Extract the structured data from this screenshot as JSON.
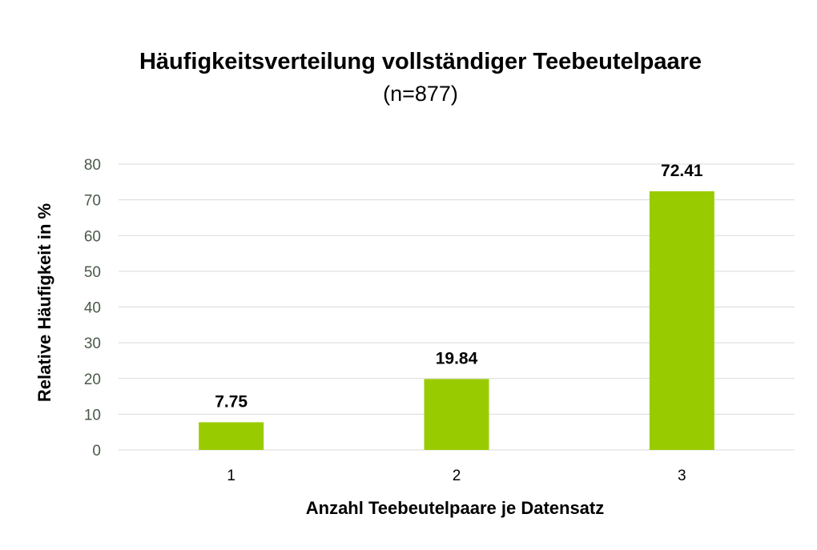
{
  "chart_data": {
    "type": "bar",
    "title": "Häufigkeitsverteilung vollständiger Teebeutelpaare",
    "subtitle": "(n=877)",
    "xlabel": "Anzahl Teebeutelpaare je Datensatz",
    "ylabel": "Relative Häufigkeit in %",
    "categories": [
      "1",
      "2",
      "3"
    ],
    "values": [
      7.75,
      19.84,
      72.41
    ],
    "data_labels": [
      "7.75",
      "19.84",
      "72.41"
    ],
    "yticks": [
      "0",
      "10",
      "20",
      "30",
      "40",
      "50",
      "60",
      "70",
      "80"
    ],
    "ylim": [
      0,
      80
    ],
    "grid": true,
    "legend": "none",
    "bar_color": "#99cc00"
  }
}
